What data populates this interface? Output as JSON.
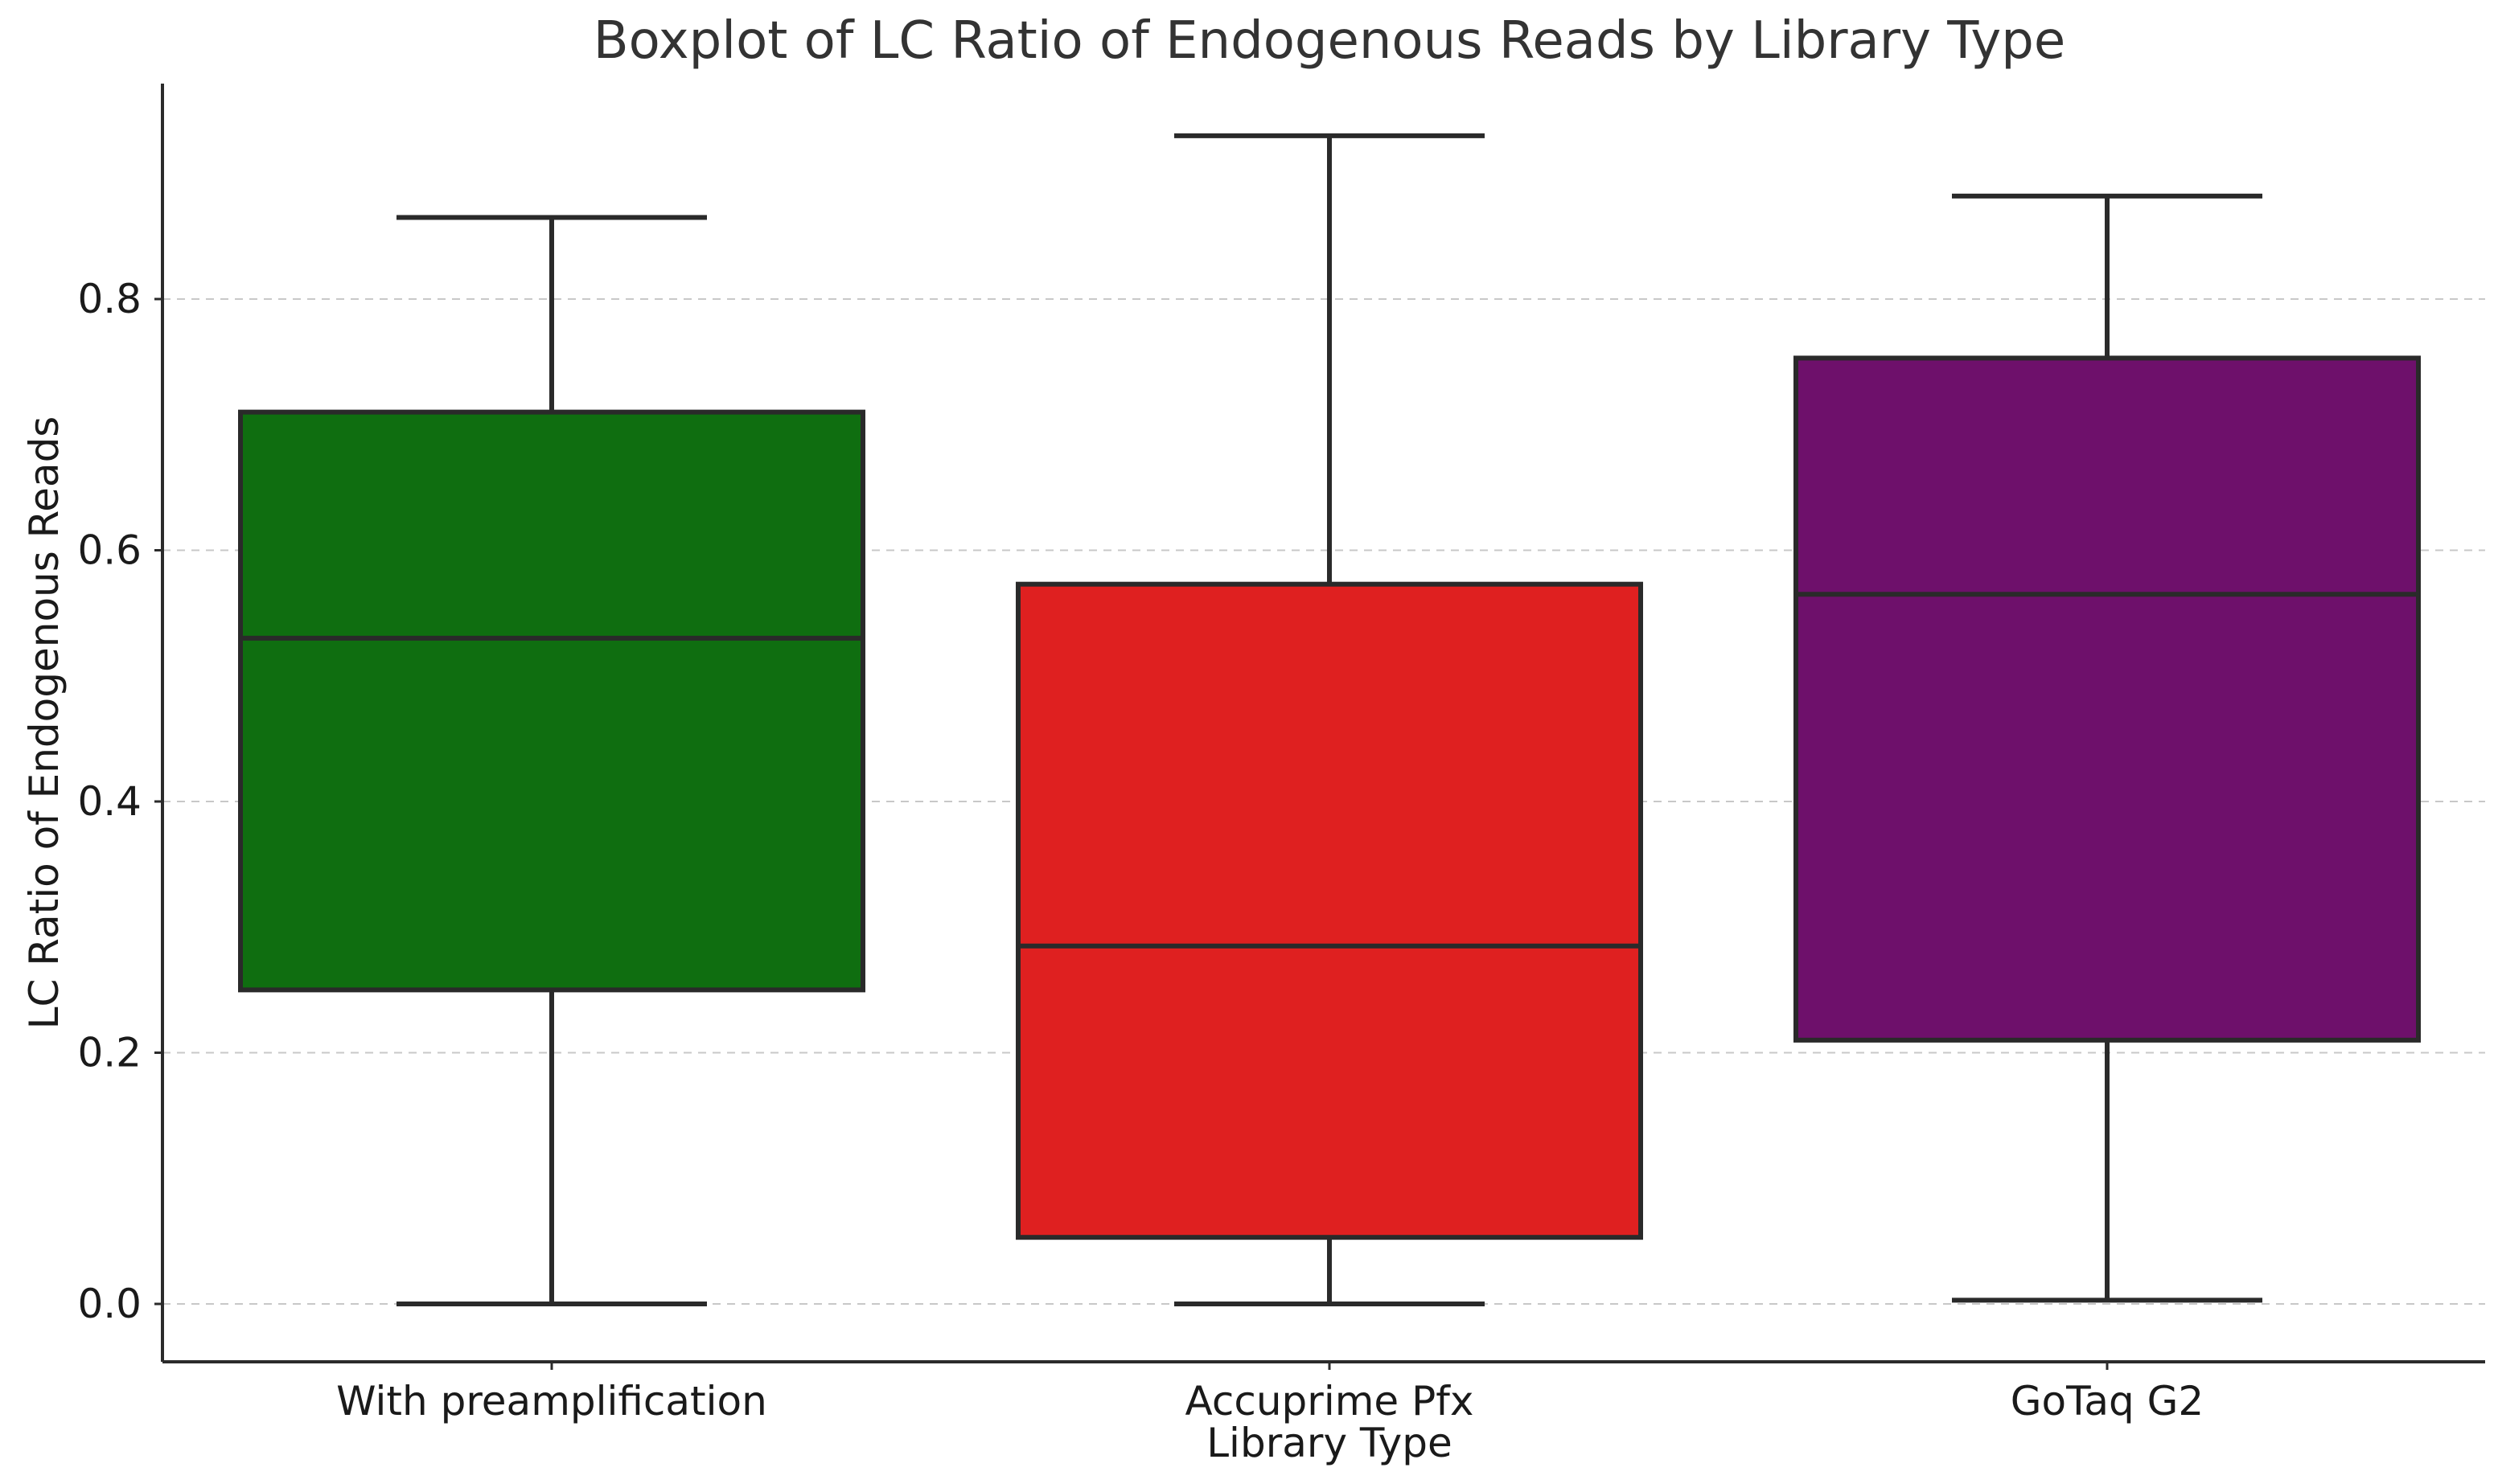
{
  "chart_data": {
    "type": "boxplot",
    "title": "Boxplot of LC Ratio of Endogenous Reads by Library Type",
    "xlabel": "Library Type",
    "ylabel": "LC Ratio of Endogenous Reads",
    "categories": [
      "With preamplification",
      "Accuprime Pfx",
      "GoTaq G2"
    ],
    "boxes": [
      {
        "category": "With preamplification",
        "whisker_low": 0.0,
        "q1": 0.25,
        "median": 0.53,
        "q3": 0.71,
        "whisker_high": 0.865,
        "color": "#0f6e10"
      },
      {
        "category": "Accuprime Pfx",
        "whisker_low": 0.0,
        "q1": 0.053,
        "median": 0.285,
        "q3": 0.573,
        "whisker_high": 0.93,
        "color": "#df2020"
      },
      {
        "category": "GoTaq G2",
        "whisker_low": 0.003,
        "q1": 0.21,
        "median": 0.565,
        "q3": 0.753,
        "whisker_high": 0.882,
        "color": "#6e106b"
      }
    ],
    "y_ticks": [
      0.0,
      0.2,
      0.4,
      0.6,
      0.8
    ],
    "y_tick_labels": [
      "0.0",
      "0.2",
      "0.4",
      "0.6",
      "0.8"
    ],
    "ylim": [
      -0.047,
      0.975
    ],
    "grid": "y-dashed",
    "legend": "none"
  }
}
